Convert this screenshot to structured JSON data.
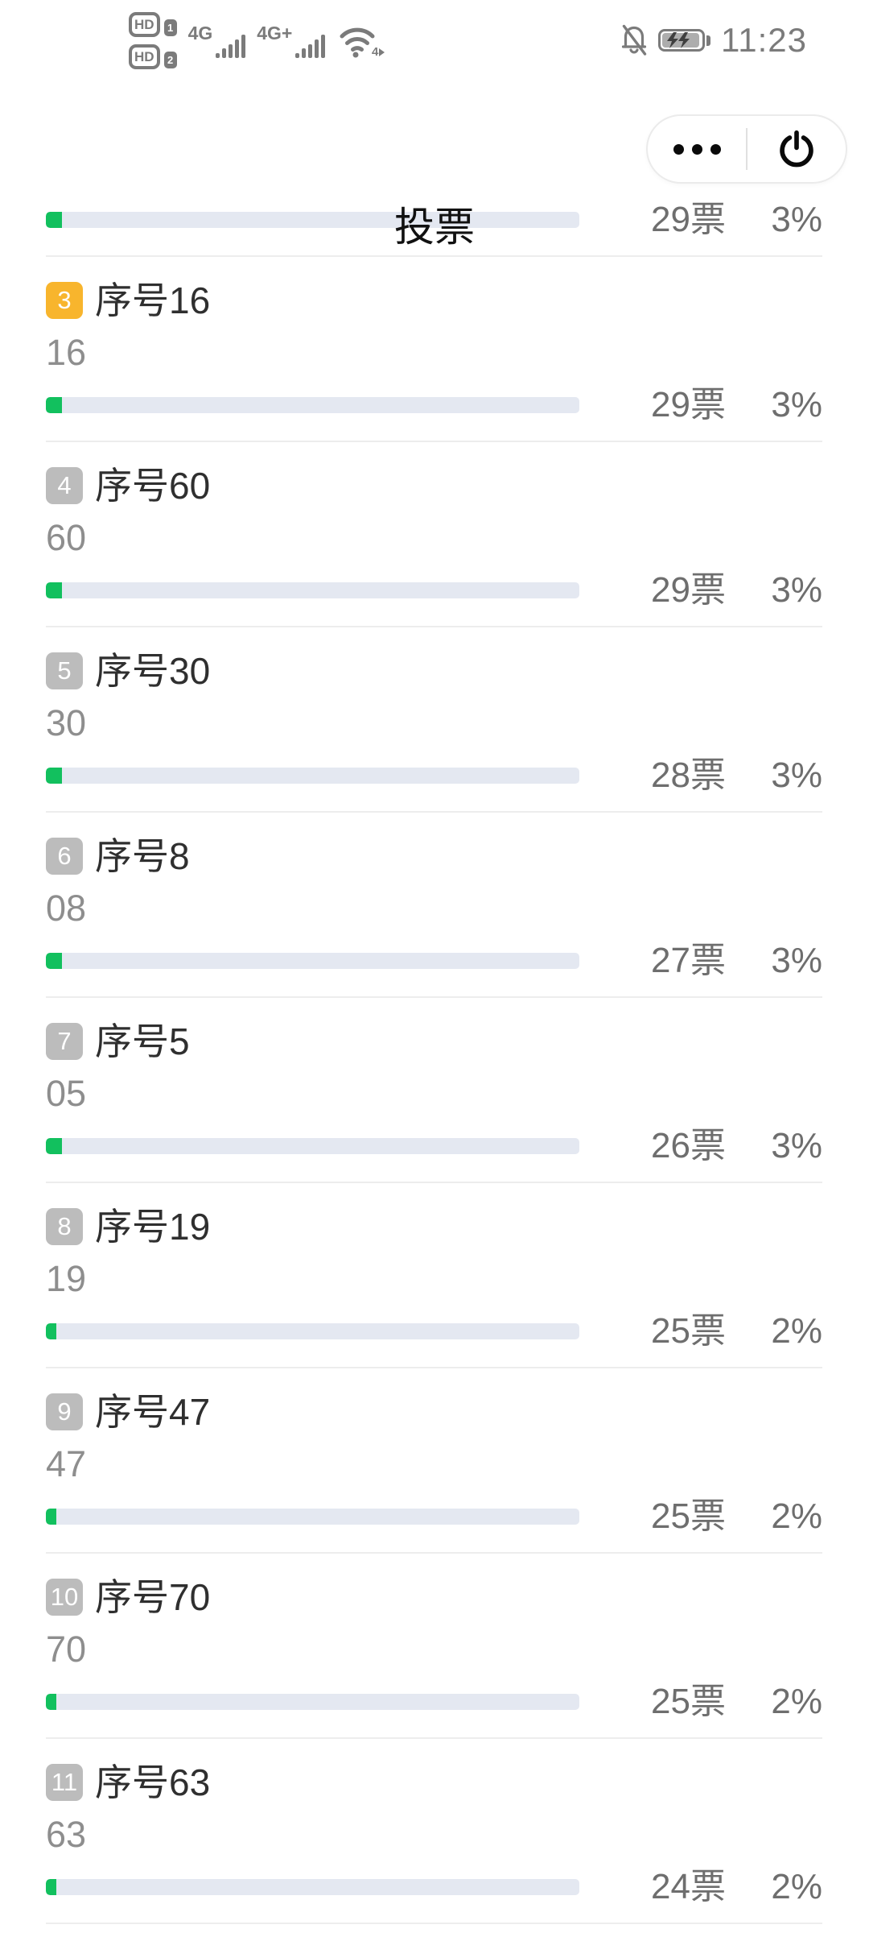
{
  "status_bar": {
    "hd_label": "HD",
    "sim1_num": "1",
    "sim2_num": "2",
    "network1": "4G",
    "network2": "4G+",
    "wifi_badge": "4",
    "time": "11:23"
  },
  "header": {
    "title": "投票"
  },
  "colors": {
    "accent_green": "#12c05e",
    "track": "#e4e8f1",
    "badge_orange": "#f8b52d",
    "badge_gray": "#bcbcbc",
    "divider": "#ededed"
  },
  "list": {
    "partial_item": {
      "votes": "29票",
      "percent": "3%",
      "percent_value": 3
    },
    "items": [
      {
        "rank": "3",
        "title": "序号16",
        "option": "16",
        "votes": "29票",
        "percent": "3%",
        "percent_value": 3,
        "badge_color": "#f8b52d"
      },
      {
        "rank": "4",
        "title": "序号60",
        "option": "60",
        "votes": "29票",
        "percent": "3%",
        "percent_value": 3,
        "badge_color": "#bcbcbc"
      },
      {
        "rank": "5",
        "title": "序号30",
        "option": "30",
        "votes": "28票",
        "percent": "3%",
        "percent_value": 3,
        "badge_color": "#bcbcbc"
      },
      {
        "rank": "6",
        "title": "序号8",
        "option": "08",
        "votes": "27票",
        "percent": "3%",
        "percent_value": 3,
        "badge_color": "#bcbcbc"
      },
      {
        "rank": "7",
        "title": "序号5",
        "option": "05",
        "votes": "26票",
        "percent": "3%",
        "percent_value": 3,
        "badge_color": "#bcbcbc"
      },
      {
        "rank": "8",
        "title": "序号19",
        "option": "19",
        "votes": "25票",
        "percent": "2%",
        "percent_value": 2,
        "badge_color": "#bcbcbc"
      },
      {
        "rank": "9",
        "title": "序号47",
        "option": "47",
        "votes": "25票",
        "percent": "2%",
        "percent_value": 2,
        "badge_color": "#bcbcbc"
      },
      {
        "rank": "10",
        "title": "序号70",
        "option": "70",
        "votes": "25票",
        "percent": "2%",
        "percent_value": 2,
        "badge_color": "#bcbcbc"
      },
      {
        "rank": "11",
        "title": "序号63",
        "option": "63",
        "votes": "24票",
        "percent": "2%",
        "percent_value": 2,
        "badge_color": "#bcbcbc"
      }
    ]
  }
}
